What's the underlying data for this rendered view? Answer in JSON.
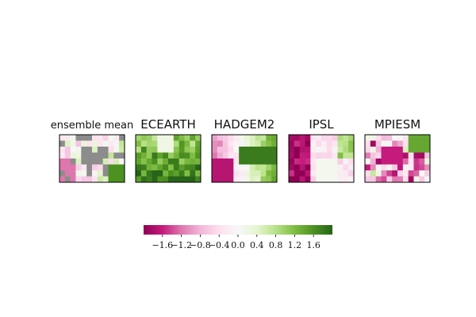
{
  "chart_data": {
    "type": "heatmap",
    "panels": [
      {
        "name": "ensemble mean",
        "pattern": "mean"
      },
      {
        "name": "ECEARTH",
        "pattern": "ecearth"
      },
      {
        "name": "HADGEM2",
        "pattern": "hadgem"
      },
      {
        "name": "IPSL",
        "pattern": "ipsl"
      },
      {
        "name": "MPIESM",
        "pattern": "mpiesm"
      }
    ],
    "grid": {
      "cols": 12,
      "rows": 8
    },
    "colorbar": {
      "vmin": -2.0,
      "vmax": 2.0,
      "ticks": [
        -1.6,
        -1.2,
        -0.8,
        -0.4,
        0.0,
        0.4,
        0.8,
        1.2,
        1.6
      ],
      "tick_labels": [
        "−1.6",
        "−1.2",
        "−0.8",
        "−0.4",
        "0.0",
        "0.4",
        "0.8",
        "1.2",
        "1.6"
      ],
      "colormap": "PiYG"
    },
    "masked_color": "#8c8c8c"
  }
}
